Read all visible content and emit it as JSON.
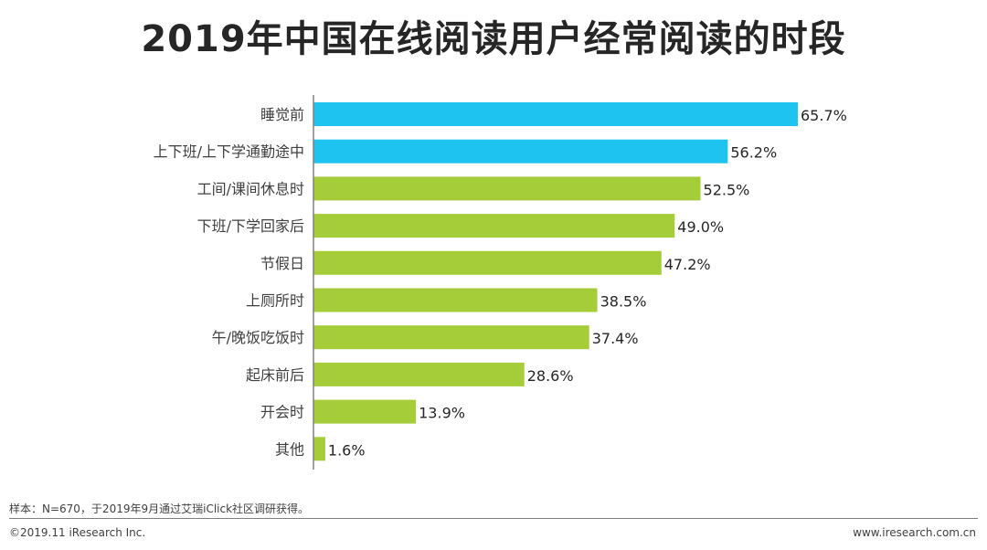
{
  "header": {
    "title": "2019年中国在线阅读用户经常阅读的时段"
  },
  "chart_data": {
    "type": "bar",
    "orientation": "horizontal",
    "title": "2019年中国在线阅读用户经常阅读的时段",
    "xlabel": "",
    "ylabel": "",
    "xlim": [
      0,
      70
    ],
    "categories": [
      "睡觉前",
      "上下班/上下学通勤途中",
      "工间/课间休息时",
      "下班/下学回家后",
      "节假日",
      "上厕所时",
      "午/晚饭吃饭时",
      "起床前后",
      "开会时",
      "其他"
    ],
    "values": [
      65.7,
      56.2,
      52.5,
      49.0,
      47.2,
      38.5,
      37.4,
      28.6,
      13.9,
      1.6
    ],
    "value_labels": [
      "65.7%",
      "56.2%",
      "52.5%",
      "49.0%",
      "47.2%",
      "38.5%",
      "37.4%",
      "28.6%",
      "13.9%",
      "1.6%"
    ],
    "highlight_count": 2,
    "colors": {
      "highlight": "#1ec3ef",
      "normal": "#a4cd39",
      "axis": "#808080",
      "label": "#404040"
    }
  },
  "footer": {
    "note": "样本：N=670，于2019年9月通过艾瑞iClick社区调研获得。",
    "copyright": "©2019.11 iResearch Inc.",
    "website": "www.iresearch.com.cn"
  }
}
